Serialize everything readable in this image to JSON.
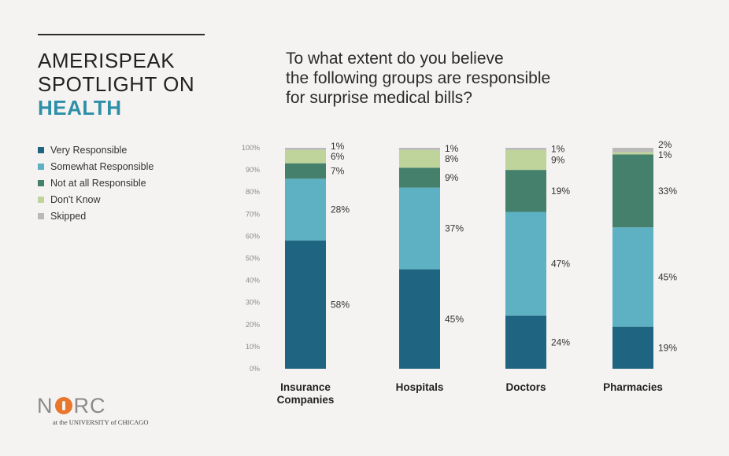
{
  "header": {
    "brand_line1": "AMERISPEAK",
    "brand_line2": "SPOTLIGHT ON",
    "brand_line3": "HEALTH",
    "question_line1": "To what extent do you believe",
    "question_line2": "the following groups are responsible",
    "question_line3": "for surprise medical bills?"
  },
  "legend": [
    {
      "label": "Very Responsible",
      "color": "#1f6480"
    },
    {
      "label": "Somewhat Responsible",
      "color": "#5eb1c2"
    },
    {
      "label": "Not at all Responsible",
      "color": "#44806b"
    },
    {
      "label": "Don't Know",
      "color": "#bfd49a"
    },
    {
      "label": "Skipped",
      "color": "#b9b9b9"
    }
  ],
  "logo": {
    "word_left": "N",
    "word_right": "RC",
    "subtitle": "at the UNIVERSITY of CHICAGO"
  },
  "chart_data": {
    "type": "bar",
    "stacked": true,
    "categories": [
      [
        "Insurance",
        "Companies"
      ],
      [
        "Hospitals"
      ],
      [
        "Doctors"
      ],
      [
        "Pharmacies"
      ]
    ],
    "series": [
      {
        "name": "Very Responsible",
        "values": [
          58,
          45,
          24,
          19
        ],
        "color": "#1f6480"
      },
      {
        "name": "Somewhat Responsible",
        "values": [
          28,
          37,
          47,
          45
        ],
        "color": "#5eb1c2"
      },
      {
        "name": "Not at all Responsible",
        "values": [
          7,
          9,
          19,
          33
        ],
        "color": "#44806b"
      },
      {
        "name": "Don't Know",
        "values": [
          6,
          8,
          9,
          1
        ],
        "color": "#bfd49a"
      },
      {
        "name": "Skipped",
        "values": [
          1,
          1,
          1,
          2
        ],
        "color": "#b9b9b9"
      }
    ],
    "data_labels": [
      [
        "58%",
        "28%",
        "7%",
        "6%",
        "1%"
      ],
      [
        "45%",
        "37%",
        "9%",
        "8%",
        "1%"
      ],
      [
        "24%",
        "47%",
        "19%",
        "9%",
        "1%"
      ],
      [
        "19%",
        "45%",
        "33%",
        "1%",
        "2%"
      ]
    ],
    "yticks": [
      "0%",
      "10%",
      "20%",
      "30%",
      "40%",
      "50%",
      "60%",
      "70%",
      "80%",
      "90%",
      "100%"
    ],
    "ylim": [
      0,
      100
    ],
    "grid": false,
    "legend_position": "left"
  }
}
